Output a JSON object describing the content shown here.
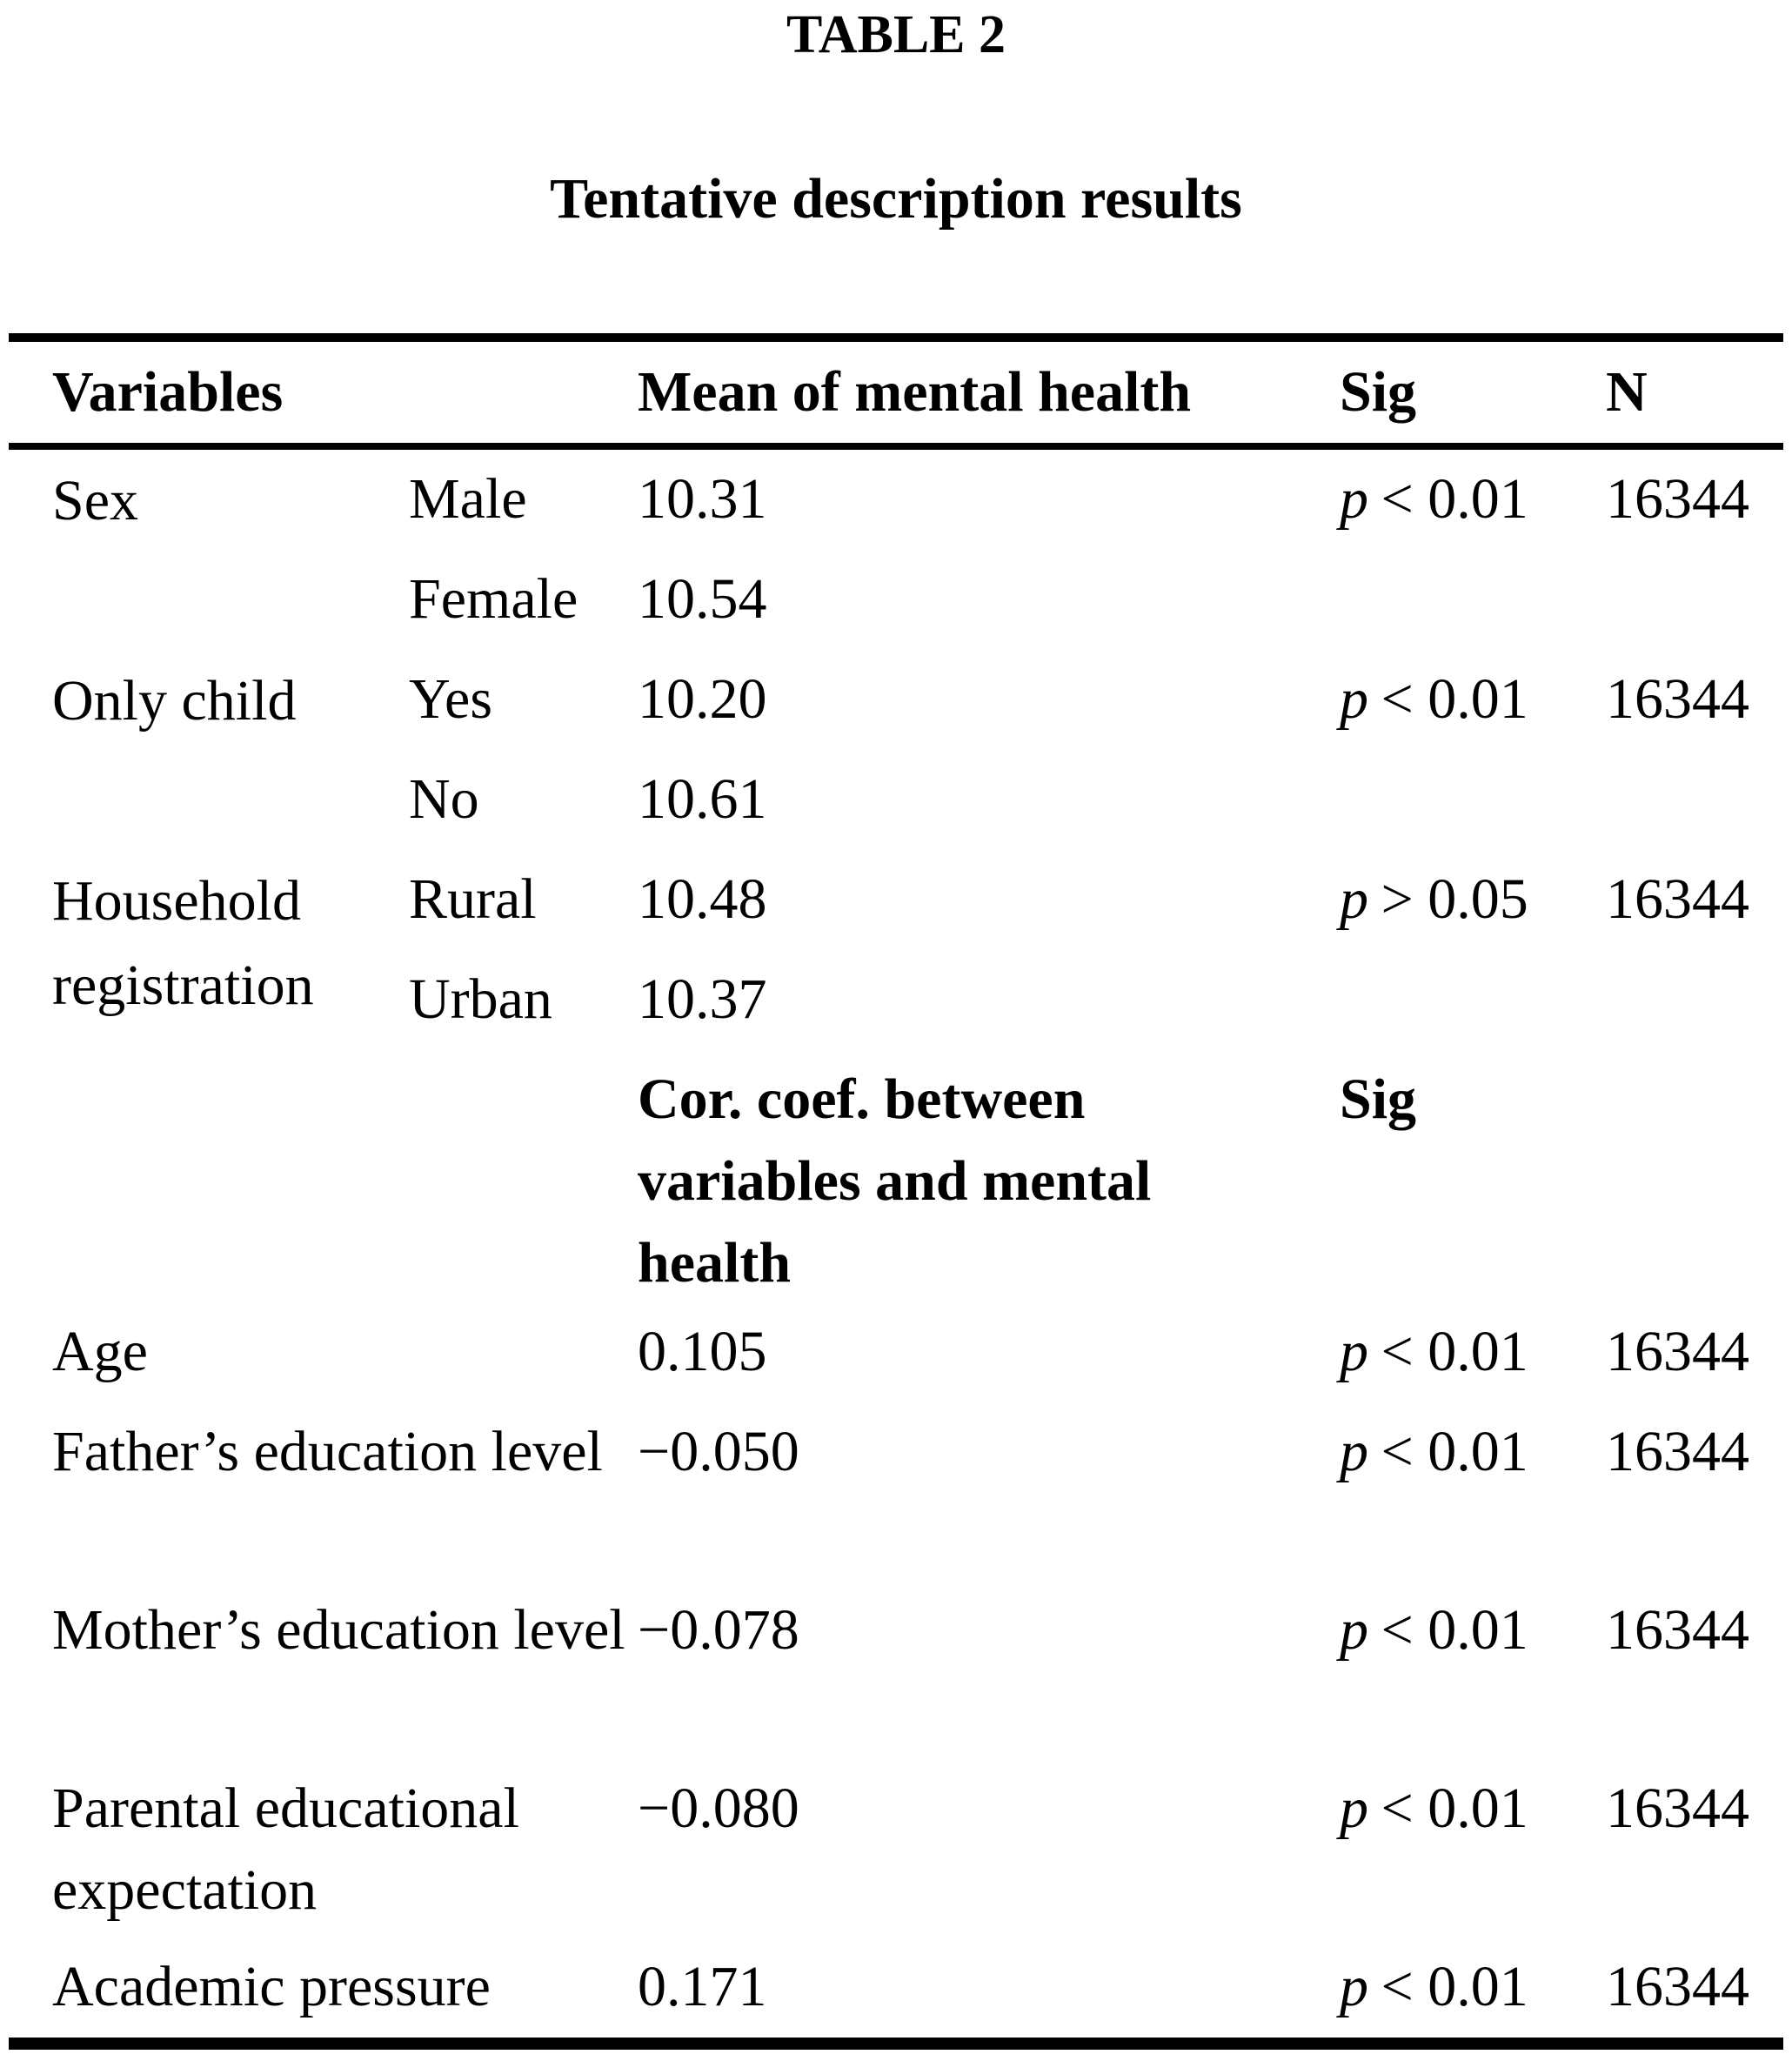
{
  "page": {
    "title": "TABLE 2",
    "subtitle": "Tentative description results"
  },
  "table": {
    "header": {
      "variables": "Variables",
      "mean": "Mean of mental health",
      "sig": "Sig",
      "n": "N"
    },
    "group_rows": [
      {
        "variable": "Sex",
        "sig_p": "p",
        "sig_rest": "< 0.01",
        "n": "16344",
        "items": [
          {
            "category": "Male",
            "value": "10.31"
          },
          {
            "category": "Female",
            "value": "10.54"
          }
        ]
      },
      {
        "variable": "Only child",
        "sig_p": "p",
        "sig_rest": "< 0.01",
        "n": "16344",
        "items": [
          {
            "category": "Yes",
            "value": "10.20"
          },
          {
            "category": "No",
            "value": "10.61"
          }
        ]
      },
      {
        "variable": "Household registration",
        "sig_p": "p",
        "sig_rest": "> 0.05",
        "n": "16344",
        "items": [
          {
            "category": "Rural",
            "value": "10.48"
          },
          {
            "category": "Urban",
            "value": "10.37"
          }
        ]
      }
    ],
    "subheader": {
      "value_label": "Cor. coef. between variables and mental health",
      "sig_label": "Sig"
    },
    "correlation_rows": [
      {
        "variable": "Age",
        "value": "0.105",
        "sig_p": "p",
        "sig_rest": "< 0.01",
        "n": "16344"
      },
      {
        "variable": "Father’s education level",
        "value": "−0.050",
        "sig_p": "p",
        "sig_rest": "< 0.01",
        "n": "16344"
      },
      {
        "variable": "Mother’s education level",
        "value": "−0.078",
        "sig_p": "p",
        "sig_rest": "< 0.01",
        "n": "16344"
      },
      {
        "variable": "Parental educational expectation",
        "value": "−0.080",
        "sig_p": "p",
        "sig_rest": "< 0.01",
        "n": "16344"
      },
      {
        "variable": "Academic pressure",
        "value": "0.171",
        "sig_p": "p",
        "sig_rest": "< 0.01",
        "n": "16344"
      }
    ]
  }
}
